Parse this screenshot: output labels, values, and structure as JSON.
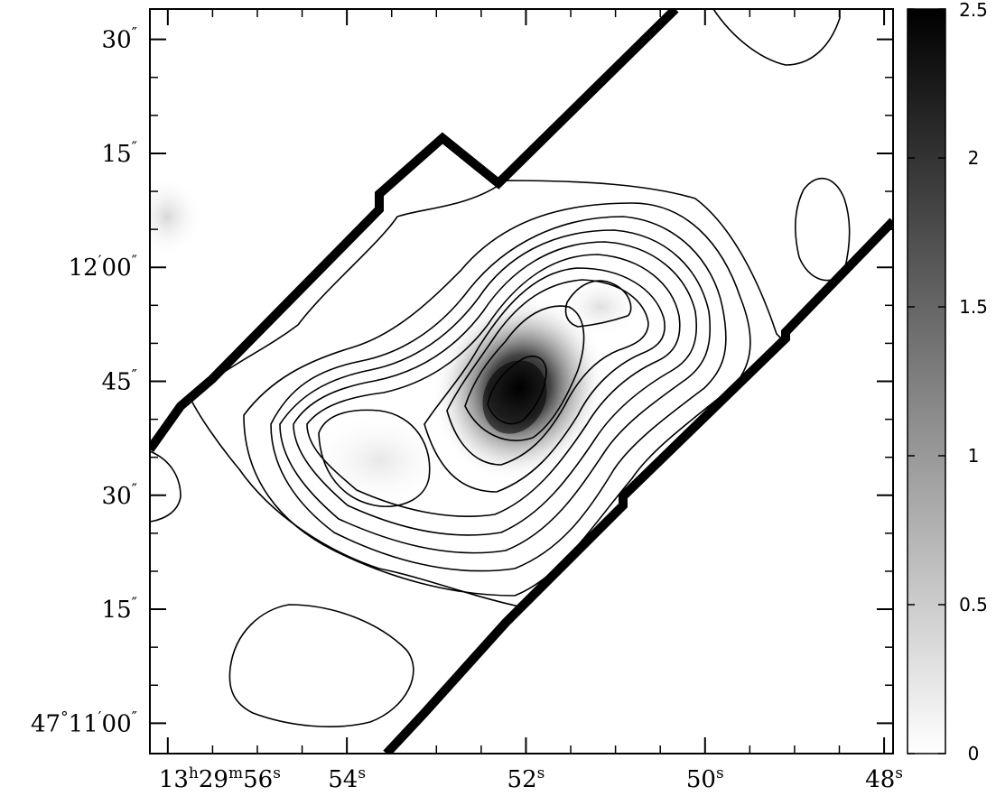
{
  "chart_data": {
    "type": "heatmap",
    "title": "",
    "xlabel": "",
    "ylabel": "",
    "x_axis": {
      "ticks": [
        {
          "ra_seconds": 56,
          "parts": [
            "13",
            "h",
            "29",
            "m",
            "56",
            "s"
          ]
        },
        {
          "ra_seconds": 54,
          "parts": [
            "54",
            "s"
          ]
        },
        {
          "ra_seconds": 52,
          "parts": [
            "52",
            "s"
          ]
        },
        {
          "ra_seconds": 50,
          "parts": [
            "50",
            "s"
          ]
        },
        {
          "ra_seconds": 48,
          "parts": [
            "48",
            "s"
          ]
        }
      ],
      "range_ra_seconds": [
        56.2,
        47.9
      ]
    },
    "y_axis": {
      "ticks": [
        {
          "dec_arcsec": 90,
          "parts": [
            "30",
            "″"
          ]
        },
        {
          "dec_arcsec": 75,
          "parts": [
            "15",
            "″"
          ]
        },
        {
          "dec_arcsec": 60,
          "parts": [
            "12",
            "′",
            "00",
            "″"
          ]
        },
        {
          "dec_arcsec": 45,
          "parts": [
            "45",
            "″"
          ]
        },
        {
          "dec_arcsec": 30,
          "parts": [
            "30",
            "″"
          ]
        },
        {
          "dec_arcsec": 15,
          "parts": [
            "15",
            "″"
          ]
        },
        {
          "dec_arcsec": 0,
          "parts": [
            "47",
            "°",
            "11",
            "′",
            "00",
            "″"
          ]
        }
      ],
      "range_dec_arcsec_from_47d11m00s": [
        -4,
        94
      ]
    },
    "colorbar": {
      "range": [
        0,
        2.5
      ],
      "ticks": [
        {
          "value": 0,
          "label": "0"
        },
        {
          "value": 0.5,
          "label": "0.5"
        },
        {
          "value": 1,
          "label": "1"
        },
        {
          "value": 1.5,
          "label": "1.5"
        },
        {
          "value": 2,
          "label": "2"
        },
        {
          "value": 2.5,
          "label": "2.5"
        }
      ],
      "colormap": [
        "#ffffff",
        "#000000"
      ]
    },
    "peak": {
      "ra_seconds": 52.8,
      "dec_arcsec": 42,
      "value": 2.5
    },
    "contour_levels_count": 10,
    "grid": false,
    "legend": "none"
  }
}
